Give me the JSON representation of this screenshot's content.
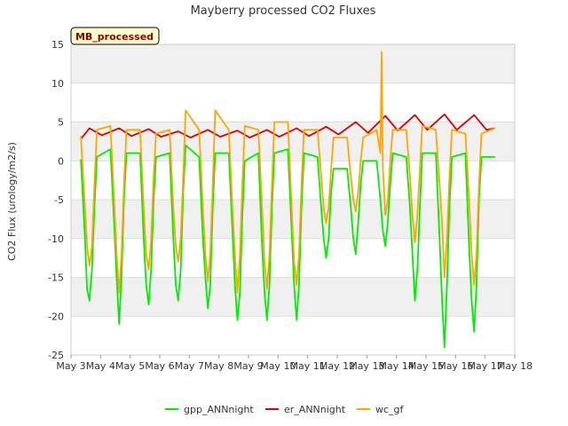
{
  "chart_data": {
    "type": "line",
    "title": "Mayberry processed CO2 Fluxes",
    "ylabel": "CO2 Flux (urology/m2/s)",
    "xlabel": "",
    "site_tag": "MB_processed",
    "xlim": [
      "2024-05-03",
      "2024-05-18"
    ],
    "ylim": [
      -25,
      15
    ],
    "x_ticks": [
      "May 3",
      "May 4",
      "May 5",
      "May 6",
      "May 7",
      "May 8",
      "May 9",
      "May 10",
      "May 11",
      "May 12",
      "May 13",
      "May 14",
      "May 15",
      "May 16",
      "May 17",
      "May 18"
    ],
    "y_ticks": [
      15,
      10,
      5,
      0,
      -5,
      -10,
      -15,
      -20,
      -25
    ],
    "grid": true,
    "legend_position": "bottom",
    "series": [
      {
        "name": "gpp_ANNnight",
        "color": "#00ee00",
        "points": [
          [
            "2024-05-03 08:00",
            0.2
          ],
          [
            "2024-05-03 11:00",
            -9
          ],
          [
            "2024-05-03 13:00",
            -16.5
          ],
          [
            "2024-05-03 15:00",
            -18
          ],
          [
            "2024-05-03 17:00",
            -14
          ],
          [
            "2024-05-03 19:00",
            -6
          ],
          [
            "2024-05-03 21:00",
            0.5
          ],
          [
            "2024-05-04 08:00",
            1.5
          ],
          [
            "2024-05-04 11:00",
            -8
          ],
          [
            "2024-05-04 13:00",
            -15
          ],
          [
            "2024-05-04 15:00",
            -21
          ],
          [
            "2024-05-04 17:00",
            -15
          ],
          [
            "2024-05-04 19:00",
            -5
          ],
          [
            "2024-05-04 21:00",
            1
          ],
          [
            "2024-05-05 08:00",
            1
          ],
          [
            "2024-05-05 11:00",
            -10
          ],
          [
            "2024-05-05 13:00",
            -16
          ],
          [
            "2024-05-05 15:00",
            -18.5
          ],
          [
            "2024-05-05 17:00",
            -14
          ],
          [
            "2024-05-05 19:00",
            -5
          ],
          [
            "2024-05-05 21:00",
            0.5
          ],
          [
            "2024-05-06 08:00",
            1
          ],
          [
            "2024-05-06 11:00",
            -10
          ],
          [
            "2024-05-06 13:00",
            -16
          ],
          [
            "2024-05-06 15:00",
            -18
          ],
          [
            "2024-05-06 17:00",
            -14
          ],
          [
            "2024-05-06 19:00",
            -4
          ],
          [
            "2024-05-06 21:00",
            2
          ],
          [
            "2024-05-07 08:00",
            0.5
          ],
          [
            "2024-05-07 11:00",
            -10
          ],
          [
            "2024-05-07 13:00",
            -15
          ],
          [
            "2024-05-07 15:00",
            -19
          ],
          [
            "2024-05-07 17:00",
            -16
          ],
          [
            "2024-05-07 19:00",
            -6
          ],
          [
            "2024-05-07 21:00",
            1
          ],
          [
            "2024-05-08 08:00",
            1
          ],
          [
            "2024-05-08 11:00",
            -9
          ],
          [
            "2024-05-08 13:00",
            -16
          ],
          [
            "2024-05-08 15:00",
            -20.5
          ],
          [
            "2024-05-08 17:00",
            -17
          ],
          [
            "2024-05-08 19:00",
            -7
          ],
          [
            "2024-05-08 21:00",
            0
          ],
          [
            "2024-05-09 08:00",
            1
          ],
          [
            "2024-05-09 11:00",
            -11
          ],
          [
            "2024-05-09 13:00",
            -17
          ],
          [
            "2024-05-09 15:00",
            -20.5
          ],
          [
            "2024-05-09 17:00",
            -16
          ],
          [
            "2024-05-09 19:00",
            -6
          ],
          [
            "2024-05-09 21:00",
            1
          ],
          [
            "2024-05-10 08:00",
            1.5
          ],
          [
            "2024-05-10 11:00",
            -9
          ],
          [
            "2024-05-10 13:00",
            -16
          ],
          [
            "2024-05-10 15:00",
            -20.5
          ],
          [
            "2024-05-10 17:00",
            -16
          ],
          [
            "2024-05-10 19:00",
            -6
          ],
          [
            "2024-05-10 21:00",
            1
          ],
          [
            "2024-05-11 08:00",
            0.5
          ],
          [
            "2024-05-11 11:00",
            -6
          ],
          [
            "2024-05-11 13:00",
            -10
          ],
          [
            "2024-05-11 15:00",
            -12.5
          ],
          [
            "2024-05-11 17:00",
            -10
          ],
          [
            "2024-05-11 19:00",
            -4
          ],
          [
            "2024-05-11 21:00",
            -1
          ],
          [
            "2024-05-12 08:00",
            -1
          ],
          [
            "2024-05-12 11:00",
            -6
          ],
          [
            "2024-05-12 13:00",
            -10
          ],
          [
            "2024-05-12 15:00",
            -12
          ],
          [
            "2024-05-12 17:00",
            -8
          ],
          [
            "2024-05-12 19:00",
            -3
          ],
          [
            "2024-05-12 21:00",
            0
          ],
          [
            "2024-05-13 08:00",
            0
          ],
          [
            "2024-05-13 11:00",
            -5
          ],
          [
            "2024-05-13 13:00",
            -9
          ],
          [
            "2024-05-13 15:00",
            -11
          ],
          [
            "2024-05-13 17:00",
            -8
          ],
          [
            "2024-05-13 19:00",
            -3
          ],
          [
            "2024-05-13 21:00",
            1
          ],
          [
            "2024-05-14 08:00",
            0.5
          ],
          [
            "2024-05-14 11:00",
            -6
          ],
          [
            "2024-05-14 13:00",
            -12
          ],
          [
            "2024-05-14 15:00",
            -18
          ],
          [
            "2024-05-14 17:00",
            -14
          ],
          [
            "2024-05-14 19:00",
            -6
          ],
          [
            "2024-05-14 21:00",
            1
          ],
          [
            "2024-05-15 08:00",
            1
          ],
          [
            "2024-05-15 11:00",
            -10
          ],
          [
            "2024-05-15 13:00",
            -18
          ],
          [
            "2024-05-15 15:00",
            -24
          ],
          [
            "2024-05-15 17:00",
            -16
          ],
          [
            "2024-05-15 19:00",
            -6
          ],
          [
            "2024-05-15 21:00",
            0.5
          ],
          [
            "2024-05-16 08:00",
            1
          ],
          [
            "2024-05-16 11:00",
            -11
          ],
          [
            "2024-05-16 13:00",
            -18
          ],
          [
            "2024-05-16 15:00",
            -22
          ],
          [
            "2024-05-16 17:00",
            -16
          ],
          [
            "2024-05-16 19:00",
            -5
          ],
          [
            "2024-05-16 21:00",
            0.5
          ],
          [
            "2024-05-17 08:00",
            0.5
          ]
        ]
      },
      {
        "name": "er_ANNnight",
        "color": "#dd0000",
        "points": [
          [
            "2024-05-03 08:00",
            2.8
          ],
          [
            "2024-05-03 15:00",
            4.2
          ],
          [
            "2024-05-04 01:00",
            3.3
          ],
          [
            "2024-05-04 15:00",
            4.2
          ],
          [
            "2024-05-05 01:00",
            3.2
          ],
          [
            "2024-05-05 15:00",
            4.1
          ],
          [
            "2024-05-06 01:00",
            3.1
          ],
          [
            "2024-05-06 15:00",
            3.8
          ],
          [
            "2024-05-07 01:00",
            3.0
          ],
          [
            "2024-05-07 15:00",
            4.0
          ],
          [
            "2024-05-08 01:00",
            3.1
          ],
          [
            "2024-05-08 15:00",
            3.9
          ],
          [
            "2024-05-09 01:00",
            3.0
          ],
          [
            "2024-05-09 15:00",
            4.0
          ],
          [
            "2024-05-10 01:00",
            3.1
          ],
          [
            "2024-05-10 15:00",
            4.2
          ],
          [
            "2024-05-11 01:00",
            3.2
          ],
          [
            "2024-05-11 15:00",
            4.4
          ],
          [
            "2024-05-12 01:00",
            3.4
          ],
          [
            "2024-05-12 15:00",
            5.0
          ],
          [
            "2024-05-13 01:00",
            3.6
          ],
          [
            "2024-05-13 15:00",
            5.8
          ],
          [
            "2024-05-14 01:00",
            3.9
          ],
          [
            "2024-05-14 15:00",
            5.9
          ],
          [
            "2024-05-15 01:00",
            4.0
          ],
          [
            "2024-05-15 15:00",
            6.0
          ],
          [
            "2024-05-16 01:00",
            4.0
          ],
          [
            "2024-05-16 15:00",
            5.9
          ],
          [
            "2024-05-17 01:00",
            4.0
          ],
          [
            "2024-05-17 08:00",
            4.2
          ]
        ]
      },
      {
        "name": "wc_gf",
        "color": "#ffa500",
        "points": [
          [
            "2024-05-03 08:00",
            3.2
          ],
          [
            "2024-05-03 11:00",
            -5
          ],
          [
            "2024-05-03 13:00",
            -11
          ],
          [
            "2024-05-03 15:00",
            -13.5
          ],
          [
            "2024-05-03 17:00",
            -11
          ],
          [
            "2024-05-03 19:00",
            -3
          ],
          [
            "2024-05-03 21:00",
            4
          ],
          [
            "2024-05-04 08:00",
            4.5
          ],
          [
            "2024-05-04 11:00",
            -5
          ],
          [
            "2024-05-04 13:00",
            -12
          ],
          [
            "2024-05-04 15:00",
            -17
          ],
          [
            "2024-05-04 17:00",
            -12
          ],
          [
            "2024-05-04 19:00",
            -3
          ],
          [
            "2024-05-04 21:00",
            4
          ],
          [
            "2024-05-05 08:00",
            4
          ],
          [
            "2024-05-05 11:00",
            -6
          ],
          [
            "2024-05-05 13:00",
            -12
          ],
          [
            "2024-05-05 15:00",
            -14
          ],
          [
            "2024-05-05 17:00",
            -10
          ],
          [
            "2024-05-05 19:00",
            -2
          ],
          [
            "2024-05-05 21:00",
            3.5
          ],
          [
            "2024-05-06 08:00",
            4
          ],
          [
            "2024-05-06 11:00",
            -6
          ],
          [
            "2024-05-06 13:00",
            -11
          ],
          [
            "2024-05-06 15:00",
            -13
          ],
          [
            "2024-05-06 17:00",
            -10
          ],
          [
            "2024-05-06 19:00",
            -2
          ],
          [
            "2024-05-06 21:00",
            6.5
          ],
          [
            "2024-05-07 08:00",
            4
          ],
          [
            "2024-05-07 11:00",
            -6
          ],
          [
            "2024-05-07 13:00",
            -12
          ],
          [
            "2024-05-07 15:00",
            -15.5
          ],
          [
            "2024-05-07 17:00",
            -12
          ],
          [
            "2024-05-07 19:00",
            -3
          ],
          [
            "2024-05-07 21:00",
            6.5
          ],
          [
            "2024-05-08 08:00",
            4
          ],
          [
            "2024-05-08 11:00",
            -6
          ],
          [
            "2024-05-08 13:00",
            -12
          ],
          [
            "2024-05-08 15:00",
            -17
          ],
          [
            "2024-05-08 17:00",
            -12
          ],
          [
            "2024-05-08 19:00",
            -3
          ],
          [
            "2024-05-08 21:00",
            4.5
          ],
          [
            "2024-05-09 08:00",
            4
          ],
          [
            "2024-05-09 11:00",
            -6
          ],
          [
            "2024-05-09 13:00",
            -13
          ],
          [
            "2024-05-09 15:00",
            -16.5
          ],
          [
            "2024-05-09 17:00",
            -12
          ],
          [
            "2024-05-09 19:00",
            -3
          ],
          [
            "2024-05-09 21:00",
            5
          ],
          [
            "2024-05-10 08:00",
            5
          ],
          [
            "2024-05-10 11:00",
            -6
          ],
          [
            "2024-05-10 13:00",
            -13
          ],
          [
            "2024-05-10 15:00",
            -16
          ],
          [
            "2024-05-10 17:00",
            -12
          ],
          [
            "2024-05-10 19:00",
            -3
          ],
          [
            "2024-05-10 21:00",
            4
          ],
          [
            "2024-05-11 08:00",
            4
          ],
          [
            "2024-05-11 11:00",
            -2
          ],
          [
            "2024-05-11 13:00",
            -6
          ],
          [
            "2024-05-11 15:00",
            -8
          ],
          [
            "2024-05-11 17:00",
            -6
          ],
          [
            "2024-05-11 19:00",
            -1
          ],
          [
            "2024-05-11 21:00",
            3
          ],
          [
            "2024-05-12 08:00",
            3
          ],
          [
            "2024-05-12 11:00",
            -2
          ],
          [
            "2024-05-12 13:00",
            -5
          ],
          [
            "2024-05-12 15:00",
            -6.5
          ],
          [
            "2024-05-12 17:00",
            -4
          ],
          [
            "2024-05-12 19:00",
            0
          ],
          [
            "2024-05-12 21:00",
            3
          ],
          [
            "2024-05-13 08:00",
            4
          ],
          [
            "2024-05-13 11:00",
            1
          ],
          [
            "2024-05-13 12:00",
            14
          ],
          [
            "2024-05-13 13:00",
            -1
          ],
          [
            "2024-05-13 15:00",
            -7
          ],
          [
            "2024-05-13 17:00",
            -5
          ],
          [
            "2024-05-13 19:00",
            0
          ],
          [
            "2024-05-13 21:00",
            4
          ],
          [
            "2024-05-14 08:00",
            4
          ],
          [
            "2024-05-14 11:00",
            -2
          ],
          [
            "2024-05-14 13:00",
            -7
          ],
          [
            "2024-05-14 15:00",
            -10.5
          ],
          [
            "2024-05-14 17:00",
            -7
          ],
          [
            "2024-05-14 19:00",
            -1
          ],
          [
            "2024-05-14 21:00",
            4.5
          ],
          [
            "2024-05-15 08:00",
            4
          ],
          [
            "2024-05-15 11:00",
            -3
          ],
          [
            "2024-05-15 13:00",
            -8
          ],
          [
            "2024-05-15 15:00",
            -15
          ],
          [
            "2024-05-15 17:00",
            -10
          ],
          [
            "2024-05-15 19:00",
            -2
          ],
          [
            "2024-05-15 21:00",
            4
          ],
          [
            "2024-05-16 08:00",
            3.5
          ],
          [
            "2024-05-16 11:00",
            -5
          ],
          [
            "2024-05-16 13:00",
            -12
          ],
          [
            "2024-05-16 15:00",
            -16
          ],
          [
            "2024-05-16 17:00",
            -12
          ],
          [
            "2024-05-16 19:00",
            -3
          ],
          [
            "2024-05-16 21:00",
            3.5
          ],
          [
            "2024-05-17 08:00",
            4.2
          ]
        ]
      }
    ]
  }
}
